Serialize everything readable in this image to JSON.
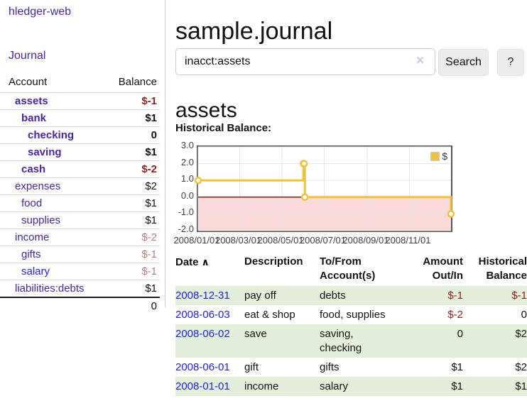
{
  "app": {
    "brand": "hledger-web",
    "nav": {
      "journal": "Journal"
    }
  },
  "sidebar": {
    "header": {
      "account": "Account",
      "balance": "Balance"
    },
    "accounts": [
      {
        "name": "assets",
        "balance": "$-1"
      },
      {
        "name": "bank",
        "balance": "$1"
      },
      {
        "name": "checking",
        "balance": "0"
      },
      {
        "name": "saving",
        "balance": "$1"
      },
      {
        "name": "cash",
        "balance": "$-2"
      },
      {
        "name": "expenses",
        "balance": "$2"
      },
      {
        "name": "food",
        "balance": "$1"
      },
      {
        "name": "supplies",
        "balance": "$1"
      },
      {
        "name": "income",
        "balance": "$-2"
      },
      {
        "name": "gifts",
        "balance": "$-1"
      },
      {
        "name": "salary",
        "balance": "$-1"
      },
      {
        "name": "liabilities:debts",
        "balance": "$1"
      }
    ],
    "total": "0"
  },
  "main": {
    "title": "sample.journal",
    "search": {
      "value": "inacct:assets",
      "clear_icon": "×",
      "search_button": "Search",
      "help_button": "?"
    },
    "account_heading": "assets",
    "section_label": "Historical Balance:",
    "register": {
      "columns": {
        "date": "Date",
        "sort_icon": "∧",
        "description": "Description",
        "tofrom": "To/From Account(s)",
        "amount": "Amount Out/In",
        "historical": "Historical Balance"
      },
      "rows": [
        {
          "date": "2008-12-31",
          "description": "pay off",
          "accounts": "debts",
          "amount": "$-1",
          "balance": "$-1"
        },
        {
          "date": "2008-06-03",
          "description": "eat & shop",
          "accounts": "food, supplies",
          "amount": "$-2",
          "balance": "0"
        },
        {
          "date": "2008-06-02",
          "description": "save",
          "accounts": "saving,\nchecking",
          "amount": "0",
          "balance": "$2"
        },
        {
          "date": "2008-06-01",
          "description": "gift",
          "accounts": "gifts",
          "amount": "$1",
          "balance": "$2"
        },
        {
          "date": "2008-01-01",
          "description": "income",
          "accounts": "salary",
          "amount": "$1",
          "balance": "$1"
        }
      ]
    }
  },
  "chart_data": {
    "type": "line",
    "title": "Historical Balance",
    "step": true,
    "legend": [
      {
        "label": "$",
        "color": "#edc240"
      }
    ],
    "x": [
      "2008-01-01",
      "2008-06-01",
      "2008-06-02",
      "2008-06-03",
      "2008-12-31"
    ],
    "values": [
      1,
      2,
      2,
      0,
      -1
    ],
    "x_range": [
      "2008-01-01",
      "2008-12-31"
    ],
    "xticks": [
      "2008/01/01",
      "2008/03/01",
      "2008/05/01",
      "2008/07/01",
      "2008/09/01",
      "2008/11/01"
    ],
    "xtick_dates": [
      "2008-01-01",
      "2008-03-01",
      "2008-05-01",
      "2008-07-01",
      "2008-09-01",
      "2008-11-01"
    ],
    "yticks": [
      "3.0",
      "2.0",
      "1.0",
      "0.0",
      "-1.0",
      "-2.0"
    ],
    "ylim": [
      -2,
      3
    ],
    "grid": true,
    "legend_position": "top-right",
    "negative_region_fill": "#fbdada",
    "zero_line_color": "#8b1a1a",
    "grid_color": "#e6e6e6",
    "marker": {
      "fill": "#ffffff",
      "radius": 4
    }
  },
  "colors": {
    "link_purple": "#4b26a0",
    "link_blue": "#2222dd",
    "negative_strong": "#8e1f1f",
    "negative_dim": "#b97d7d",
    "series_gold": "#edc240",
    "stripe_green": "#e3efdb",
    "button_bg": "#ececec"
  }
}
